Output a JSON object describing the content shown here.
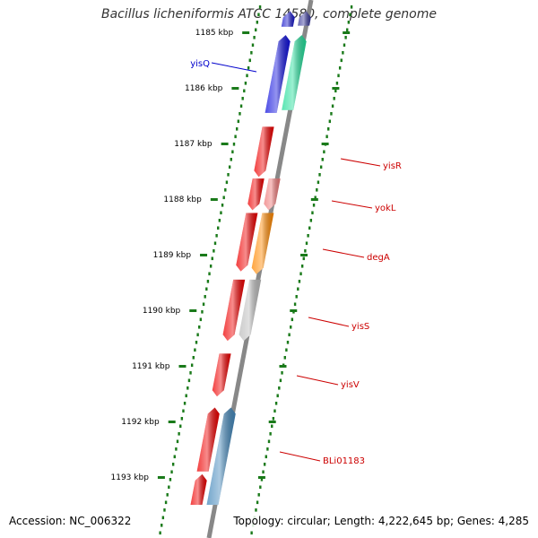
{
  "title": "Bacillus licheniformis ATCC 14580, complete genome",
  "footer": {
    "accession": "Accession: NC_006322",
    "summary": "Topology: circular; Length: 4,222,645 bp; Genes: 4,285"
  },
  "axis": {
    "unit": "kbp",
    "ticks": [
      {
        "kbp": 1185,
        "label": "1185 kbp"
      },
      {
        "kbp": 1186,
        "label": "1186 kbp"
      },
      {
        "kbp": 1187,
        "label": "1187 kbp"
      },
      {
        "kbp": 1188,
        "label": "1188 kbp"
      },
      {
        "kbp": 1189,
        "label": "1189 kbp"
      },
      {
        "kbp": 1190,
        "label": "1190 kbp"
      },
      {
        "kbp": 1191,
        "label": "1191 kbp"
      },
      {
        "kbp": 1192,
        "label": "1192 kbp"
      },
      {
        "kbp": 1193,
        "label": "1193 kbp"
      }
    ]
  },
  "colors": {
    "backbone": "#888888",
    "tick_ring": "#1a7a1a",
    "label_blue": "#0000cc",
    "label_red": "#cc0000"
  },
  "labels": [
    {
      "text": "yisQ",
      "color": "#0000cc"
    },
    {
      "text": "yisR",
      "color": "#cc0000"
    },
    {
      "text": "yokL",
      "color": "#cc0000"
    },
    {
      "text": "degA",
      "color": "#cc0000"
    },
    {
      "text": "yisS",
      "color": "#cc0000"
    },
    {
      "text": "yisV",
      "color": "#cc0000"
    },
    {
      "text": "BLi01183",
      "color": "#cc0000"
    }
  ],
  "features": [
    {
      "name": "top-dark-blue",
      "lane": "outer",
      "start": 1184.62,
      "end": 1184.88,
      "color": "#3a3a9a",
      "strand": "-"
    },
    {
      "name": "top-blue",
      "lane": "inner",
      "start": 1184.62,
      "end": 1184.9,
      "color": "#1a1acc",
      "strand": "-"
    },
    {
      "name": "yisQ-teal",
      "lane": "outer",
      "start": 1185.05,
      "end": 1186.4,
      "color": "#22dd99",
      "strand": "-"
    },
    {
      "name": "yisQ-blue",
      "lane": "inner",
      "start": 1185.05,
      "end": 1186.45,
      "color": "#1111dd",
      "strand": "-"
    },
    {
      "name": "yisR",
      "lane": "inner",
      "start": 1186.7,
      "end": 1187.6,
      "color": "#ee0000",
      "strand": "+"
    },
    {
      "name": "yokL-pink",
      "lane": "outer",
      "start": 1187.63,
      "end": 1188.2,
      "color": "#ee7777",
      "strand": "+"
    },
    {
      "name": "yokL-red",
      "lane": "inner",
      "start": 1187.63,
      "end": 1188.2,
      "color": "#ee0000",
      "strand": "+"
    },
    {
      "name": "degA",
      "lane": "outer",
      "start": 1188.25,
      "end": 1189.35,
      "color": "#ff8800",
      "strand": "+"
    },
    {
      "name": "degA-red",
      "lane": "inner",
      "start": 1188.25,
      "end": 1189.3,
      "color": "#ee0000",
      "strand": "+"
    },
    {
      "name": "yisS-grey",
      "lane": "outer",
      "start": 1189.45,
      "end": 1190.55,
      "color": "#bbbbbb",
      "strand": "+"
    },
    {
      "name": "yisS-red",
      "lane": "inner",
      "start": 1189.45,
      "end": 1190.55,
      "color": "#ee0000",
      "strand": "+"
    },
    {
      "name": "yisV",
      "lane": "inner",
      "start": 1190.78,
      "end": 1191.55,
      "color": "#ee0000",
      "strand": "+"
    },
    {
      "name": "BLi01183",
      "lane": "outer",
      "start": 1191.75,
      "end": 1193.5,
      "color": "#4488bb",
      "strand": "-"
    },
    {
      "name": "BLi01183-red",
      "lane": "inner",
      "start": 1191.75,
      "end": 1192.9,
      "color": "#ee0000",
      "strand": "-"
    },
    {
      "name": "bottom-red",
      "lane": "inner",
      "start": 1192.95,
      "end": 1193.5,
      "color": "#ee0000",
      "strand": "-"
    }
  ]
}
